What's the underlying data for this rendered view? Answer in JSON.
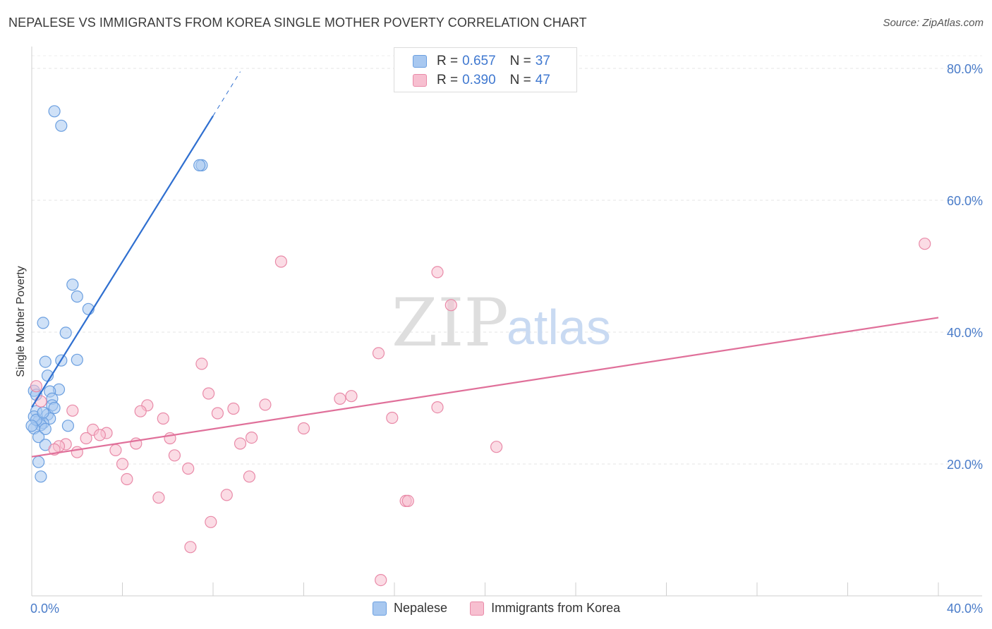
{
  "title": "NEPALESE VS IMMIGRANTS FROM KOREA SINGLE MOTHER POVERTY CORRELATION CHART",
  "source": "Source: ZipAtlas.com",
  "watermark": {
    "zip": "ZIP",
    "atlas": "atlas"
  },
  "legend": {
    "r_label": "R =",
    "n_label": "N =",
    "rows": [
      {
        "name": "Nepalese",
        "r": "0.657",
        "n": "37",
        "fill": "#a8c8f0",
        "stroke": "#6b9fe0"
      },
      {
        "name": "Immigrants from Korea",
        "r": "0.390",
        "n": "47",
        "fill": "#f7bfd0",
        "stroke": "#e98aa8"
      }
    ]
  },
  "chart_data": {
    "type": "scatter",
    "title": "NEPALESE VS IMMIGRANTS FROM KOREA SINGLE MOTHER POVERTY CORRELATION CHART",
    "xlabel": "",
    "ylabel": "Single Mother Poverty",
    "xlim": [
      0,
      40
    ],
    "ylim": [
      0,
      80
    ],
    "x_tick_labels": [
      "0.0%",
      "40.0%"
    ],
    "y_ticks": [
      20,
      40,
      60,
      80
    ],
    "y_tick_labels": [
      "20.0%",
      "40.0%",
      "60.0%",
      "80.0%"
    ],
    "series": [
      {
        "name": "Nepalese",
        "color": "#6b9fe0",
        "fill": "#a8c8f0",
        "line_color": "#2f6fd0",
        "trend": {
          "x0": 0.0,
          "y0": 28.6,
          "x1": 8.0,
          "y1": 72.8,
          "dash_to_x": 9.2,
          "dash_to_y": 79.5
        },
        "points": [
          [
            1.0,
            73.5
          ],
          [
            1.3,
            71.3
          ],
          [
            7.5,
            65.3
          ],
          [
            7.4,
            65.3
          ],
          [
            1.8,
            47.2
          ],
          [
            2.0,
            45.4
          ],
          [
            2.5,
            43.5
          ],
          [
            0.5,
            41.4
          ],
          [
            1.5,
            39.9
          ],
          [
            2.0,
            35.8
          ],
          [
            0.6,
            35.5
          ],
          [
            1.3,
            35.7
          ],
          [
            0.7,
            33.4
          ],
          [
            1.2,
            31.3
          ],
          [
            0.8,
            31.0
          ],
          [
            0.1,
            31.1
          ],
          [
            0.9,
            29.9
          ],
          [
            0.9,
            28.9
          ],
          [
            0.2,
            28.0
          ],
          [
            0.7,
            27.5
          ],
          [
            0.8,
            26.9
          ],
          [
            0.3,
            26.5
          ],
          [
            0.5,
            26.2
          ],
          [
            0.4,
            25.9
          ],
          [
            1.6,
            25.8
          ],
          [
            0.1,
            25.4
          ],
          [
            0.6,
            25.3
          ],
          [
            0.3,
            24.1
          ],
          [
            0.6,
            22.9
          ],
          [
            0.3,
            20.3
          ],
          [
            0.4,
            18.1
          ],
          [
            0.1,
            27.2
          ],
          [
            0.2,
            26.7
          ],
          [
            0.0,
            25.8
          ],
          [
            1.0,
            28.5
          ],
          [
            0.5,
            27.8
          ],
          [
            0.2,
            30.5
          ]
        ]
      },
      {
        "name": "Immigrants from Korea",
        "color": "#e98aa8",
        "fill": "#f7bfd0",
        "line_color": "#e0709a",
        "trend": {
          "x0": 0.0,
          "y0": 21.1,
          "x1": 40.0,
          "y1": 42.2
        },
        "points": [
          [
            39.4,
            53.4
          ],
          [
            11.0,
            50.7
          ],
          [
            17.9,
            49.1
          ],
          [
            18.5,
            44.1
          ],
          [
            15.3,
            36.8
          ],
          [
            7.5,
            35.2
          ],
          [
            7.8,
            30.7
          ],
          [
            14.1,
            30.3
          ],
          [
            13.6,
            29.9
          ],
          [
            10.3,
            29.0
          ],
          [
            5.1,
            28.9
          ],
          [
            17.9,
            28.6
          ],
          [
            8.9,
            28.4
          ],
          [
            1.8,
            28.1
          ],
          [
            4.8,
            28.0
          ],
          [
            8.2,
            27.7
          ],
          [
            5.8,
            26.9
          ],
          [
            15.9,
            27.0
          ],
          [
            12.0,
            25.4
          ],
          [
            2.7,
            25.2
          ],
          [
            3.3,
            24.7
          ],
          [
            3.0,
            24.4
          ],
          [
            2.4,
            23.9
          ],
          [
            6.1,
            23.9
          ],
          [
            9.7,
            24.0
          ],
          [
            9.2,
            23.1
          ],
          [
            4.6,
            23.1
          ],
          [
            1.5,
            23.0
          ],
          [
            1.2,
            22.7
          ],
          [
            20.5,
            22.6
          ],
          [
            1.0,
            22.2
          ],
          [
            3.7,
            22.1
          ],
          [
            2.0,
            21.8
          ],
          [
            6.3,
            21.3
          ],
          [
            4.0,
            20.0
          ],
          [
            6.9,
            19.3
          ],
          [
            9.6,
            18.1
          ],
          [
            4.2,
            17.7
          ],
          [
            8.6,
            15.3
          ],
          [
            5.6,
            14.9
          ],
          [
            16.5,
            14.4
          ],
          [
            16.6,
            14.4
          ],
          [
            7.9,
            11.2
          ],
          [
            7.0,
            7.4
          ],
          [
            15.4,
            2.4
          ],
          [
            0.2,
            31.8
          ],
          [
            0.4,
            29.5
          ]
        ]
      }
    ]
  },
  "bottom_legend": [
    "Nepalese",
    "Immigrants from Korea"
  ]
}
